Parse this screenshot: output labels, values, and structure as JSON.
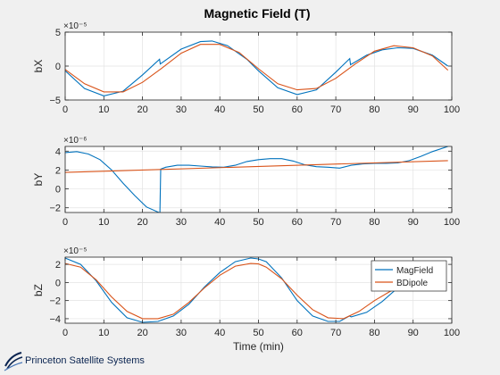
{
  "figure": {
    "title": "Magnetic Field (T)",
    "background": "#f0f0f0"
  },
  "logo": {
    "text": "Princeton Satellite Systems",
    "color": "#0a2450"
  },
  "colors": {
    "MagField": "#0072bd",
    "BDipole": "#d95319",
    "axis": "#262626",
    "grid": "#e3e3e3",
    "plot_bg": "#ffffff"
  },
  "chart_data": [
    {
      "type": "line",
      "id": "bx",
      "xlabel": "",
      "ylabel": "bX",
      "exponent": "×10⁻⁵",
      "xlim": [
        0,
        100
      ],
      "ylim": [
        -5,
        5
      ],
      "xticks": [
        0,
        10,
        20,
        30,
        40,
        50,
        60,
        70,
        80,
        90,
        100
      ],
      "yticks": [
        -5,
        0,
        5
      ],
      "grid": true,
      "series": [
        {
          "name": "MagField",
          "x": [
            0,
            5,
            10,
            15,
            20,
            24.4,
            24.6,
            30,
            35,
            38,
            42,
            47,
            50,
            55,
            60,
            65,
            70,
            73.6,
            73.8,
            78,
            82,
            86,
            90,
            95,
            99
          ],
          "y": [
            -0.7,
            -3.3,
            -4.4,
            -3.7,
            -1.3,
            1.0,
            0.3,
            2.5,
            3.6,
            3.7,
            3.0,
            1.0,
            -0.7,
            -3.2,
            -4.2,
            -3.5,
            -0.9,
            1.1,
            0.2,
            1.6,
            2.4,
            2.7,
            2.6,
            1.6,
            0.0
          ]
        },
        {
          "name": "BDipole",
          "x": [
            0,
            5,
            10,
            15,
            20,
            25,
            30,
            35,
            40,
            45,
            50,
            55,
            60,
            65,
            70,
            75,
            80,
            85,
            90,
            95,
            99
          ],
          "y": [
            -0.5,
            -2.6,
            -3.8,
            -3.8,
            -2.4,
            -0.3,
            1.9,
            3.2,
            3.2,
            2.0,
            -0.4,
            -2.6,
            -3.5,
            -3.3,
            -1.8,
            0.3,
            2.2,
            3.0,
            2.7,
            1.5,
            -0.6
          ]
        }
      ]
    },
    {
      "type": "line",
      "id": "by",
      "xlabel": "",
      "ylabel": "bY",
      "exponent": "×10⁻⁶",
      "xlim": [
        0,
        100
      ],
      "ylim": [
        -2.5,
        4.5
      ],
      "xticks": [
        0,
        10,
        20,
        30,
        40,
        50,
        60,
        70,
        80,
        90,
        100
      ],
      "yticks": [
        -2,
        0,
        2,
        4
      ],
      "grid": true,
      "series": [
        {
          "name": "MagField",
          "x": [
            0,
            3,
            6,
            9,
            12,
            15,
            18,
            21,
            24.5,
            24.7,
            26,
            29,
            32,
            35,
            38,
            41,
            44,
            47,
            50,
            53,
            56,
            59,
            62,
            65,
            68,
            71,
            74,
            77,
            80,
            83,
            86,
            89,
            92,
            95,
            99
          ],
          "y": [
            3.85,
            3.95,
            3.7,
            3.1,
            2.0,
            0.6,
            -0.7,
            -1.9,
            -2.55,
            2.1,
            2.3,
            2.5,
            2.5,
            2.42,
            2.33,
            2.3,
            2.5,
            2.9,
            3.1,
            3.2,
            3.2,
            2.95,
            2.55,
            2.35,
            2.3,
            2.2,
            2.5,
            2.65,
            2.7,
            2.7,
            2.75,
            3.0,
            3.45,
            3.95,
            4.5
          ]
        },
        {
          "name": "BDipole",
          "x": [
            0,
            99
          ],
          "y": [
            1.75,
            3.0
          ]
        }
      ]
    },
    {
      "type": "line",
      "id": "bz",
      "xlabel": "Time (min)",
      "ylabel": "bZ",
      "exponent": "×10⁻⁵",
      "xlim": [
        0,
        100
      ],
      "ylim": [
        -4.5,
        2.8
      ],
      "xticks": [
        0,
        10,
        20,
        30,
        40,
        50,
        60,
        70,
        80,
        90,
        100
      ],
      "yticks": [
        -4,
        -2,
        0,
        2
      ],
      "grid": true,
      "legend": {
        "placement": "top-right",
        "entries": [
          "MagField",
          "BDipole"
        ]
      },
      "series": [
        {
          "name": "MagField",
          "x": [
            0,
            4,
            8,
            12,
            16,
            20,
            24,
            28,
            32,
            36,
            40,
            44,
            48,
            50,
            52,
            56,
            60,
            64,
            68,
            71,
            73.5,
            74,
            78,
            82,
            86,
            90
          ],
          "y": [
            2.7,
            2.0,
            0.2,
            -2.2,
            -3.9,
            -4.4,
            -4.3,
            -3.7,
            -2.4,
            -0.5,
            1.1,
            2.3,
            2.7,
            2.6,
            2.3,
            0.5,
            -2.0,
            -3.7,
            -4.3,
            -4.3,
            -3.7,
            -3.8,
            -3.3,
            -2.1,
            -0.6,
            0.0
          ]
        },
        {
          "name": "BDipole",
          "x": [
            0,
            4,
            8,
            12,
            16,
            20,
            24,
            28,
            32,
            36,
            40,
            44,
            48,
            50,
            52,
            56,
            60,
            64,
            68,
            72,
            76,
            80,
            84,
            88,
            90
          ],
          "y": [
            2.1,
            1.7,
            0.3,
            -1.6,
            -3.2,
            -4.0,
            -4.0,
            -3.5,
            -2.2,
            -0.6,
            0.8,
            1.8,
            2.1,
            2.05,
            1.7,
            0.4,
            -1.4,
            -3.0,
            -3.9,
            -4.0,
            -3.2,
            -2.0,
            -1.0,
            -0.2,
            0.1
          ]
        }
      ]
    }
  ]
}
